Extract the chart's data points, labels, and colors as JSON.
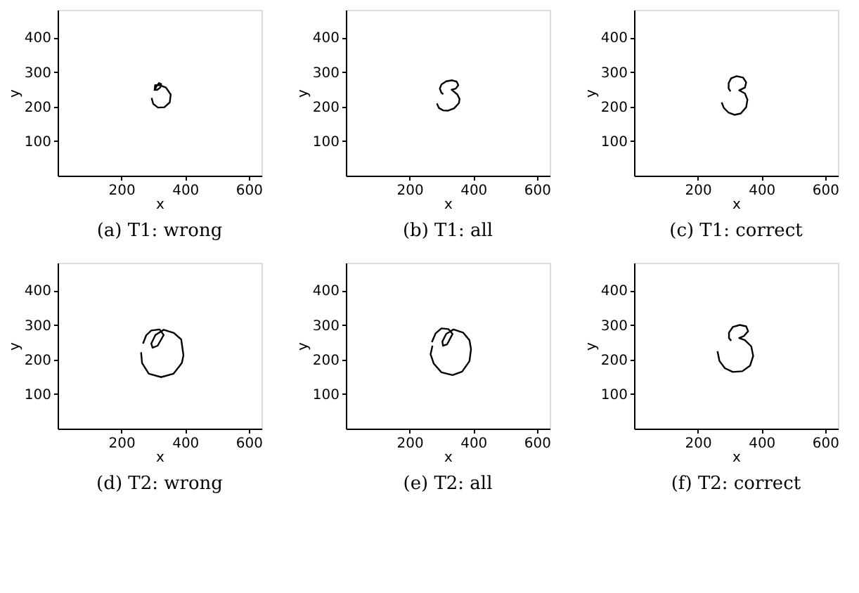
{
  "chart_data": [
    {
      "type": "line",
      "title": "(a) T1: wrong",
      "xlabel": "x",
      "ylabel": "y",
      "xlim": [
        0,
        640
      ],
      "ylim": [
        0,
        480
      ],
      "xticks": [
        200,
        400,
        600
      ],
      "yticks": [
        100,
        200,
        300,
        400
      ],
      "grid": false,
      "series": [
        {
          "color": "#000000",
          "x": [
            303,
            310,
            318,
            325,
            322,
            312,
            305,
            306,
            320,
            340,
            355,
            352,
            335,
            315,
            300,
            295
          ],
          "values": [
            246,
            258,
            268,
            265,
            255,
            248,
            250,
            262,
            262,
            255,
            235,
            212,
            198,
            197,
            208,
            225
          ]
        }
      ]
    },
    {
      "type": "line",
      "title": "(b) T1: all",
      "xlabel": "x",
      "ylabel": "y",
      "xlim": [
        0,
        640
      ],
      "ylim": [
        0,
        480
      ],
      "xticks": [
        200,
        400,
        600
      ],
      "yticks": [
        100,
        200,
        300,
        400
      ],
      "grid": false,
      "series": [
        {
          "color": "#000000",
          "x": [
            286,
            292,
            305,
            320,
            340,
            355,
            357,
            350,
            332,
            345,
            353,
            348,
            334,
            315,
            300,
            295,
            300,
            306
          ],
          "values": [
            209,
            196,
            189,
            188,
            195,
            210,
            222,
            235,
            249,
            252,
            262,
            272,
            276,
            273,
            264,
            252,
            240,
            236
          ]
        }
      ]
    },
    {
      "type": "line",
      "title": "(c) T1: correct",
      "xlabel": "x",
      "ylabel": "y",
      "xlim": [
        0,
        640
      ],
      "ylim": [
        0,
        480
      ],
      "xticks": [
        200,
        400,
        600
      ],
      "yticks": [
        100,
        200,
        300,
        400
      ],
      "grid": false,
      "series": [
        {
          "color": "#000000",
          "x": [
            275,
            282,
            296,
            315,
            335,
            352,
            356,
            348,
            330,
            348,
            352,
            342,
            322,
            305,
            297,
            297,
            303
          ],
          "values": [
            212,
            196,
            183,
            176,
            180,
            198,
            220,
            238,
            247,
            255,
            270,
            284,
            288,
            282,
            268,
            252,
            244
          ]
        }
      ]
    },
    {
      "type": "line",
      "title": "(d) T2: wrong",
      "xlabel": "x",
      "ylabel": "y",
      "xlim": [
        0,
        640
      ],
      "ylim": [
        0,
        480
      ],
      "xticks": [
        200,
        400,
        600
      ],
      "yticks": [
        100,
        200,
        300,
        400
      ],
      "grid": false,
      "series": [
        {
          "color": "#000000",
          "x": [
            268,
            278,
            294,
            320,
            333,
            314,
            298,
            294,
            307,
            333,
            365,
            388,
            395,
            390,
            364,
            325,
            286,
            265,
            262
          ],
          "values": [
            246,
            270,
            284,
            287,
            271,
            240,
            234,
            246,
            271,
            286,
            277,
            258,
            212,
            190,
            159,
            149,
            159,
            190,
            221
          ]
        }
      ]
    },
    {
      "type": "line",
      "title": "(e) T2: all",
      "xlabel": "x",
      "ylabel": "y",
      "xlim": [
        0,
        640
      ],
      "ylim": [
        0,
        480
      ],
      "xticks": [
        200,
        400,
        600
      ],
      "yticks": [
        100,
        200,
        300,
        400
      ],
      "grid": false,
      "series": [
        {
          "color": "#000000",
          "x": [
            270,
            282,
            300,
            322,
            335,
            318,
            305,
            303,
            315,
            338,
            368,
            388,
            393,
            388,
            365,
            335,
            300,
            276,
            266,
            272
          ],
          "values": [
            250,
            276,
            290,
            288,
            274,
            244,
            240,
            252,
            274,
            287,
            278,
            256,
            230,
            195,
            165,
            155,
            163,
            188,
            215,
            240
          ]
        }
      ]
    },
    {
      "type": "line",
      "title": "(f) T2: correct",
      "xlabel": "x",
      "ylabel": "y",
      "xlim": [
        0,
        640
      ],
      "ylim": [
        0,
        480
      ],
      "xticks": [
        200,
        400,
        600
      ],
      "yticks": [
        100,
        200,
        300,
        400
      ],
      "grid": false,
      "series": [
        {
          "color": "#000000",
          "x": [
            262,
            268,
            285,
            310,
            340,
            364,
            374,
            368,
            348,
            330,
            345,
            358,
            352,
            332,
            310,
            298,
            298,
            305
          ],
          "values": [
            224,
            196,
            175,
            164,
            166,
            182,
            210,
            238,
            256,
            262,
            268,
            282,
            296,
            300,
            294,
            278,
            262,
            254
          ]
        }
      ]
    }
  ]
}
